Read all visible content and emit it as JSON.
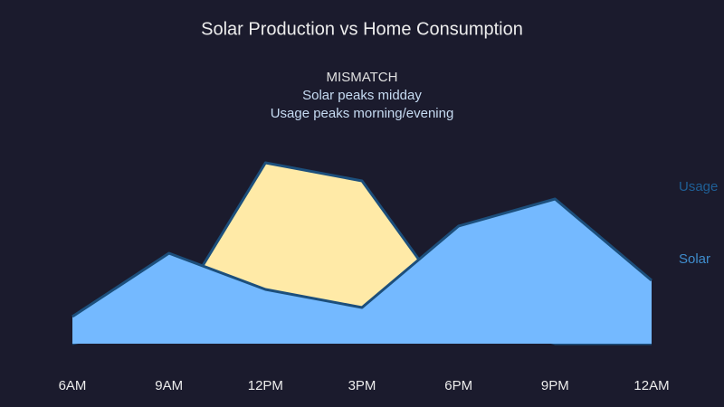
{
  "chart_data": {
    "type": "area",
    "title": "Solar Production vs Home Consumption",
    "annotation": {
      "heading": "MISMATCH",
      "lines": [
        "Solar peaks midday",
        "Usage peaks morning/evening"
      ]
    },
    "categories": [
      "6AM",
      "9AM",
      "12PM",
      "3PM",
      "6PM",
      "9PM",
      "12AM"
    ],
    "series": [
      {
        "name": "Usage",
        "color": "#74b9ff",
        "values": [
          1.2,
          4.0,
          2.4,
          1.6,
          5.2,
          6.4,
          2.8
        ]
      },
      {
        "name": "Solar",
        "color": "#ffeaa7",
        "values": [
          0,
          1,
          8.0,
          7.2,
          1.3,
          0,
          0
        ]
      }
    ],
    "ylim": [
      0,
      10
    ]
  }
}
